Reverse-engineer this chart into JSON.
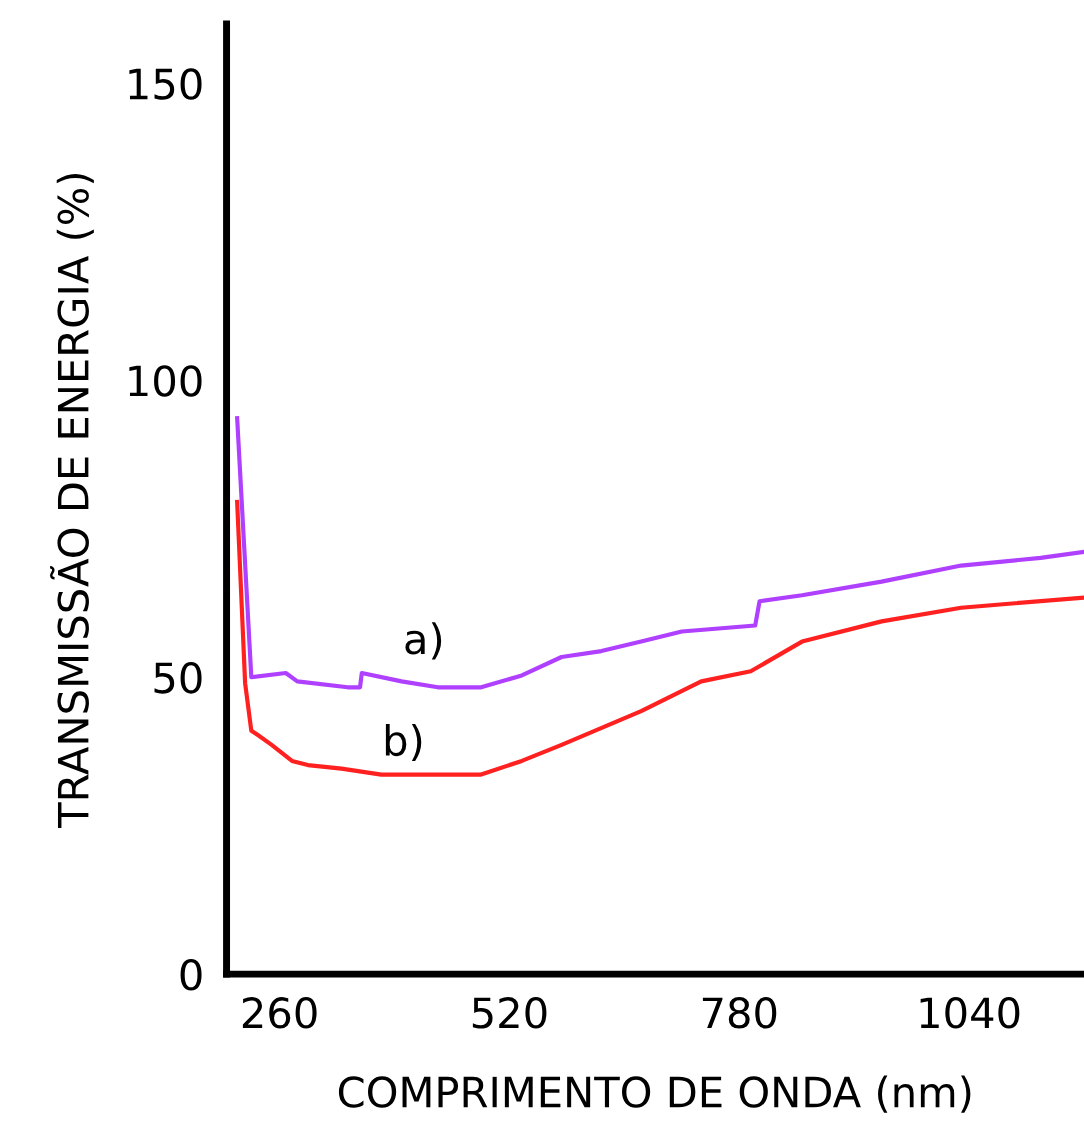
{
  "chart_data": {
    "type": "line",
    "xlabel": "COMPRIMENTO DE ONDA (nm)",
    "ylabel": "TRANSMISSÃO DE ENERGIA (%)",
    "xlim": [
      200,
      1170
    ],
    "xticks": [
      260,
      520,
      780,
      1040
    ],
    "ylim": [
      0,
      160
    ],
    "yticks": [
      0,
      50,
      100,
      150
    ],
    "grid": false,
    "marker": "none",
    "line_style": "solid",
    "series": [
      {
        "name": "a)",
        "color": "#b040ff",
        "x": [
          212,
          228,
          267,
          280,
          337,
          351,
          353,
          398,
          439,
          488,
          534,
          579,
          624,
          669,
          715,
          798,
          803,
          851,
          941,
          1031,
          1121,
          1169
        ],
        "values": [
          93.6,
          50,
          50.7,
          49.3,
          48.3,
          48.3,
          50.7,
          49.3,
          48.3,
          48.3,
          50.3,
          53.4,
          54.4,
          56,
          57.7,
          58.7,
          62.8,
          63.8,
          66.1,
          68.8,
          70.1,
          71.1
        ]
      },
      {
        "name": "b)",
        "color": "#ff2020",
        "x": [
          212,
          221,
          228,
          235,
          251,
          274,
          292,
          330,
          375,
          488,
          534,
          579,
          669,
          737,
          793,
          851,
          941,
          1031,
          1169
        ],
        "values": [
          79.5,
          49,
          41,
          40.3,
          38.6,
          35.9,
          35.2,
          34.6,
          33.6,
          33.6,
          35.9,
          38.6,
          44.3,
          49.3,
          51,
          56,
          59.4,
          61.7,
          63.4
        ]
      }
    ]
  }
}
